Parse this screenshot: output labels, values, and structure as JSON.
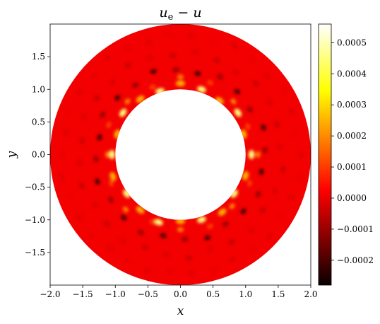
{
  "chart_data": {
    "type": "heatmap",
    "title": "u_e − u",
    "title_parts": {
      "main": "u",
      "sub": "e",
      "rest": " − u"
    },
    "xlabel": "x",
    "ylabel": "y",
    "xlim": [
      -2.0,
      2.0
    ],
    "ylim": [
      -2.0,
      2.0
    ],
    "domain": {
      "shape": "annulus",
      "inner_radius": 1.0,
      "outer_radius": 2.0,
      "center": [
        0,
        0
      ]
    },
    "xticks": [
      -2.0,
      -1.5,
      -1.0,
      -0.5,
      0.0,
      0.5,
      1.0,
      1.5,
      2.0
    ],
    "xtick_labels": [
      "−2.0",
      "−1.5",
      "−1.0",
      "−0.5",
      "0.0",
      "0.5",
      "1.0",
      "1.5",
      "2.0"
    ],
    "yticks": [
      -1.5,
      -1.0,
      -0.5,
      0.0,
      0.5,
      1.0,
      1.5
    ],
    "ytick_labels": [
      "−1.5",
      "−1.0",
      "−0.5",
      "0.0",
      "0.5",
      "1.0",
      "1.5"
    ],
    "colorbar": {
      "colormap": "hot",
      "vmin": -0.00028,
      "vmax": 0.00056,
      "ticks": [
        -0.0002,
        -0.0001,
        0.0,
        0.0001,
        0.0002,
        0.0003,
        0.0004,
        0.0005
      ],
      "tick_labels": [
        "−0.0002",
        "−0.0001",
        "0.0000",
        "0.0001",
        "0.0002",
        "0.0003",
        "0.0004",
        "0.0005"
      ]
    },
    "background_value": 0.0,
    "features": [
      {
        "r": 1.05,
        "count": 20,
        "value": 0.00045,
        "phase": 0.1
      },
      {
        "r": 1.15,
        "count": 16,
        "value": 0.0002,
        "phase": 0.25
      },
      {
        "r": 1.3,
        "count": 24,
        "value": -0.00022,
        "phase": 0.05
      },
      {
        "r": 1.55,
        "count": 28,
        "value": -6e-05,
        "phase": 0.12
      },
      {
        "r": 1.82,
        "count": 34,
        "value": -3e-05,
        "phase": 0.0
      }
    ]
  }
}
